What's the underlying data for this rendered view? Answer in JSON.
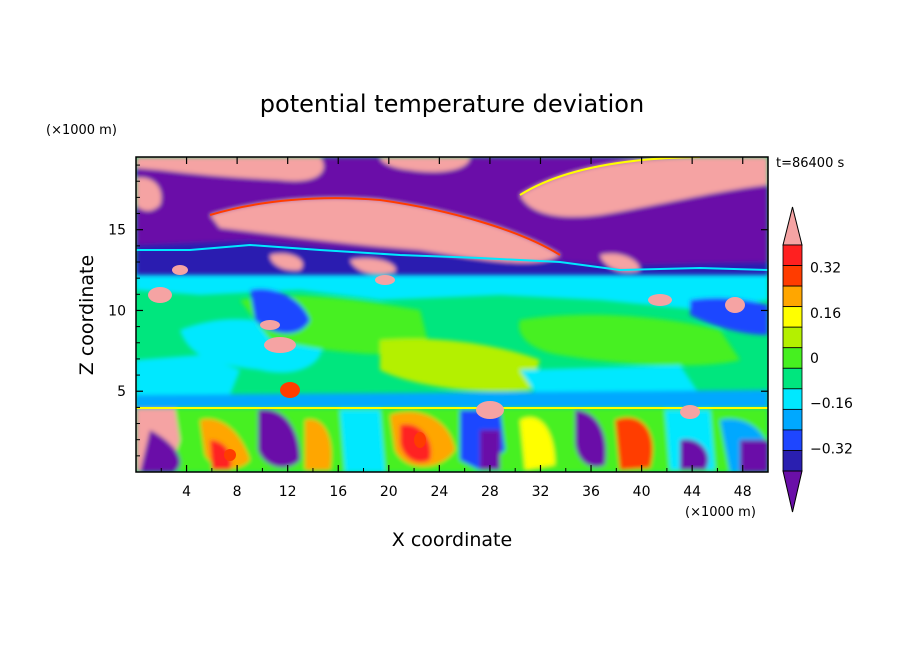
{
  "chart_data": {
    "type": "heatmap",
    "title": "potential temperature deviation",
    "xlabel": "X coordinate",
    "ylabel": "Z coordinate",
    "x_unit": "(×1000 m)",
    "y_unit": "(×1000 m)",
    "time_label": "t=86400 s",
    "xlim": [
      0,
      50
    ],
    "ylim": [
      0,
      19.5
    ],
    "x_ticks": [
      4,
      8,
      12,
      16,
      20,
      24,
      28,
      32,
      36,
      40,
      44,
      48
    ],
    "y_ticks": [
      5,
      10,
      15
    ],
    "colorbar": {
      "levels": [
        -0.4,
        -0.32,
        -0.24,
        -0.16,
        -0.08,
        0,
        0.08,
        0.16,
        0.24,
        0.32,
        0.4
      ],
      "labels": [
        "0.32",
        "0.16",
        "0",
        "−0.16",
        "−0.32"
      ],
      "label_values": [
        0.32,
        0.16,
        0,
        -0.16,
        -0.32
      ],
      "colors": [
        "#6a0fa8",
        "#2a1fb0",
        "#1e46ff",
        "#00a8ff",
        "#00e8ff",
        "#00e67e",
        "#46f020",
        "#b4f000",
        "#ffff00",
        "#ffa600",
        "#ff3c00",
        "#ff2020",
        "#f5a3a3"
      ],
      "extend": "both"
    },
    "field_description_regions": [
      {
        "z_range": [
          0,
          4
        ],
        "pattern": "mixed warm and cold cells"
      },
      {
        "z_range": [
          4,
          13
        ],
        "pattern": "near-zero green/cyan"
      },
      {
        "z_range": [
          13,
          19.5
        ],
        "pattern": "alternating strong positive (pink) and strong negative (purple) layers"
      }
    ]
  }
}
